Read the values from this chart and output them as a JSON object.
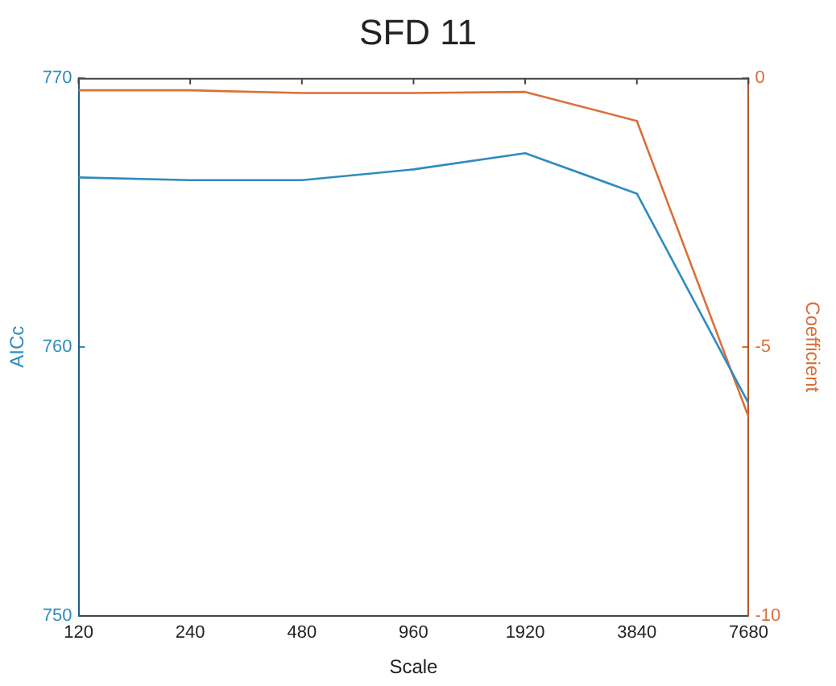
{
  "chart_data": {
    "type": "line",
    "title": "SFD 11",
    "xlabel": "Scale",
    "ylabel": "AICc",
    "y2label": "Coefficient",
    "categories": [
      "120",
      "240",
      "480",
      "960",
      "1920",
      "3840",
      "7680"
    ],
    "series": [
      {
        "color": "#2f8bbf",
        "values": [
          766.3,
          766.2,
          766.2,
          766.6,
          767.2,
          765.7,
          757.9
        ]
      },
      {
        "color": "#d9703a",
        "axis": "y2",
        "values": [
          -0.23,
          -0.23,
          -0.28,
          -0.28,
          -0.26,
          -0.8,
          -6.3
        ]
      }
    ],
    "ylim": [
      750,
      770
    ],
    "yticks": [
      750,
      760,
      770
    ],
    "y2lim": [
      -10,
      0
    ],
    "y2ticks": [
      -10,
      -5,
      0
    ],
    "grid": false,
    "legend": false,
    "marker": "none",
    "line_style": "solid"
  }
}
